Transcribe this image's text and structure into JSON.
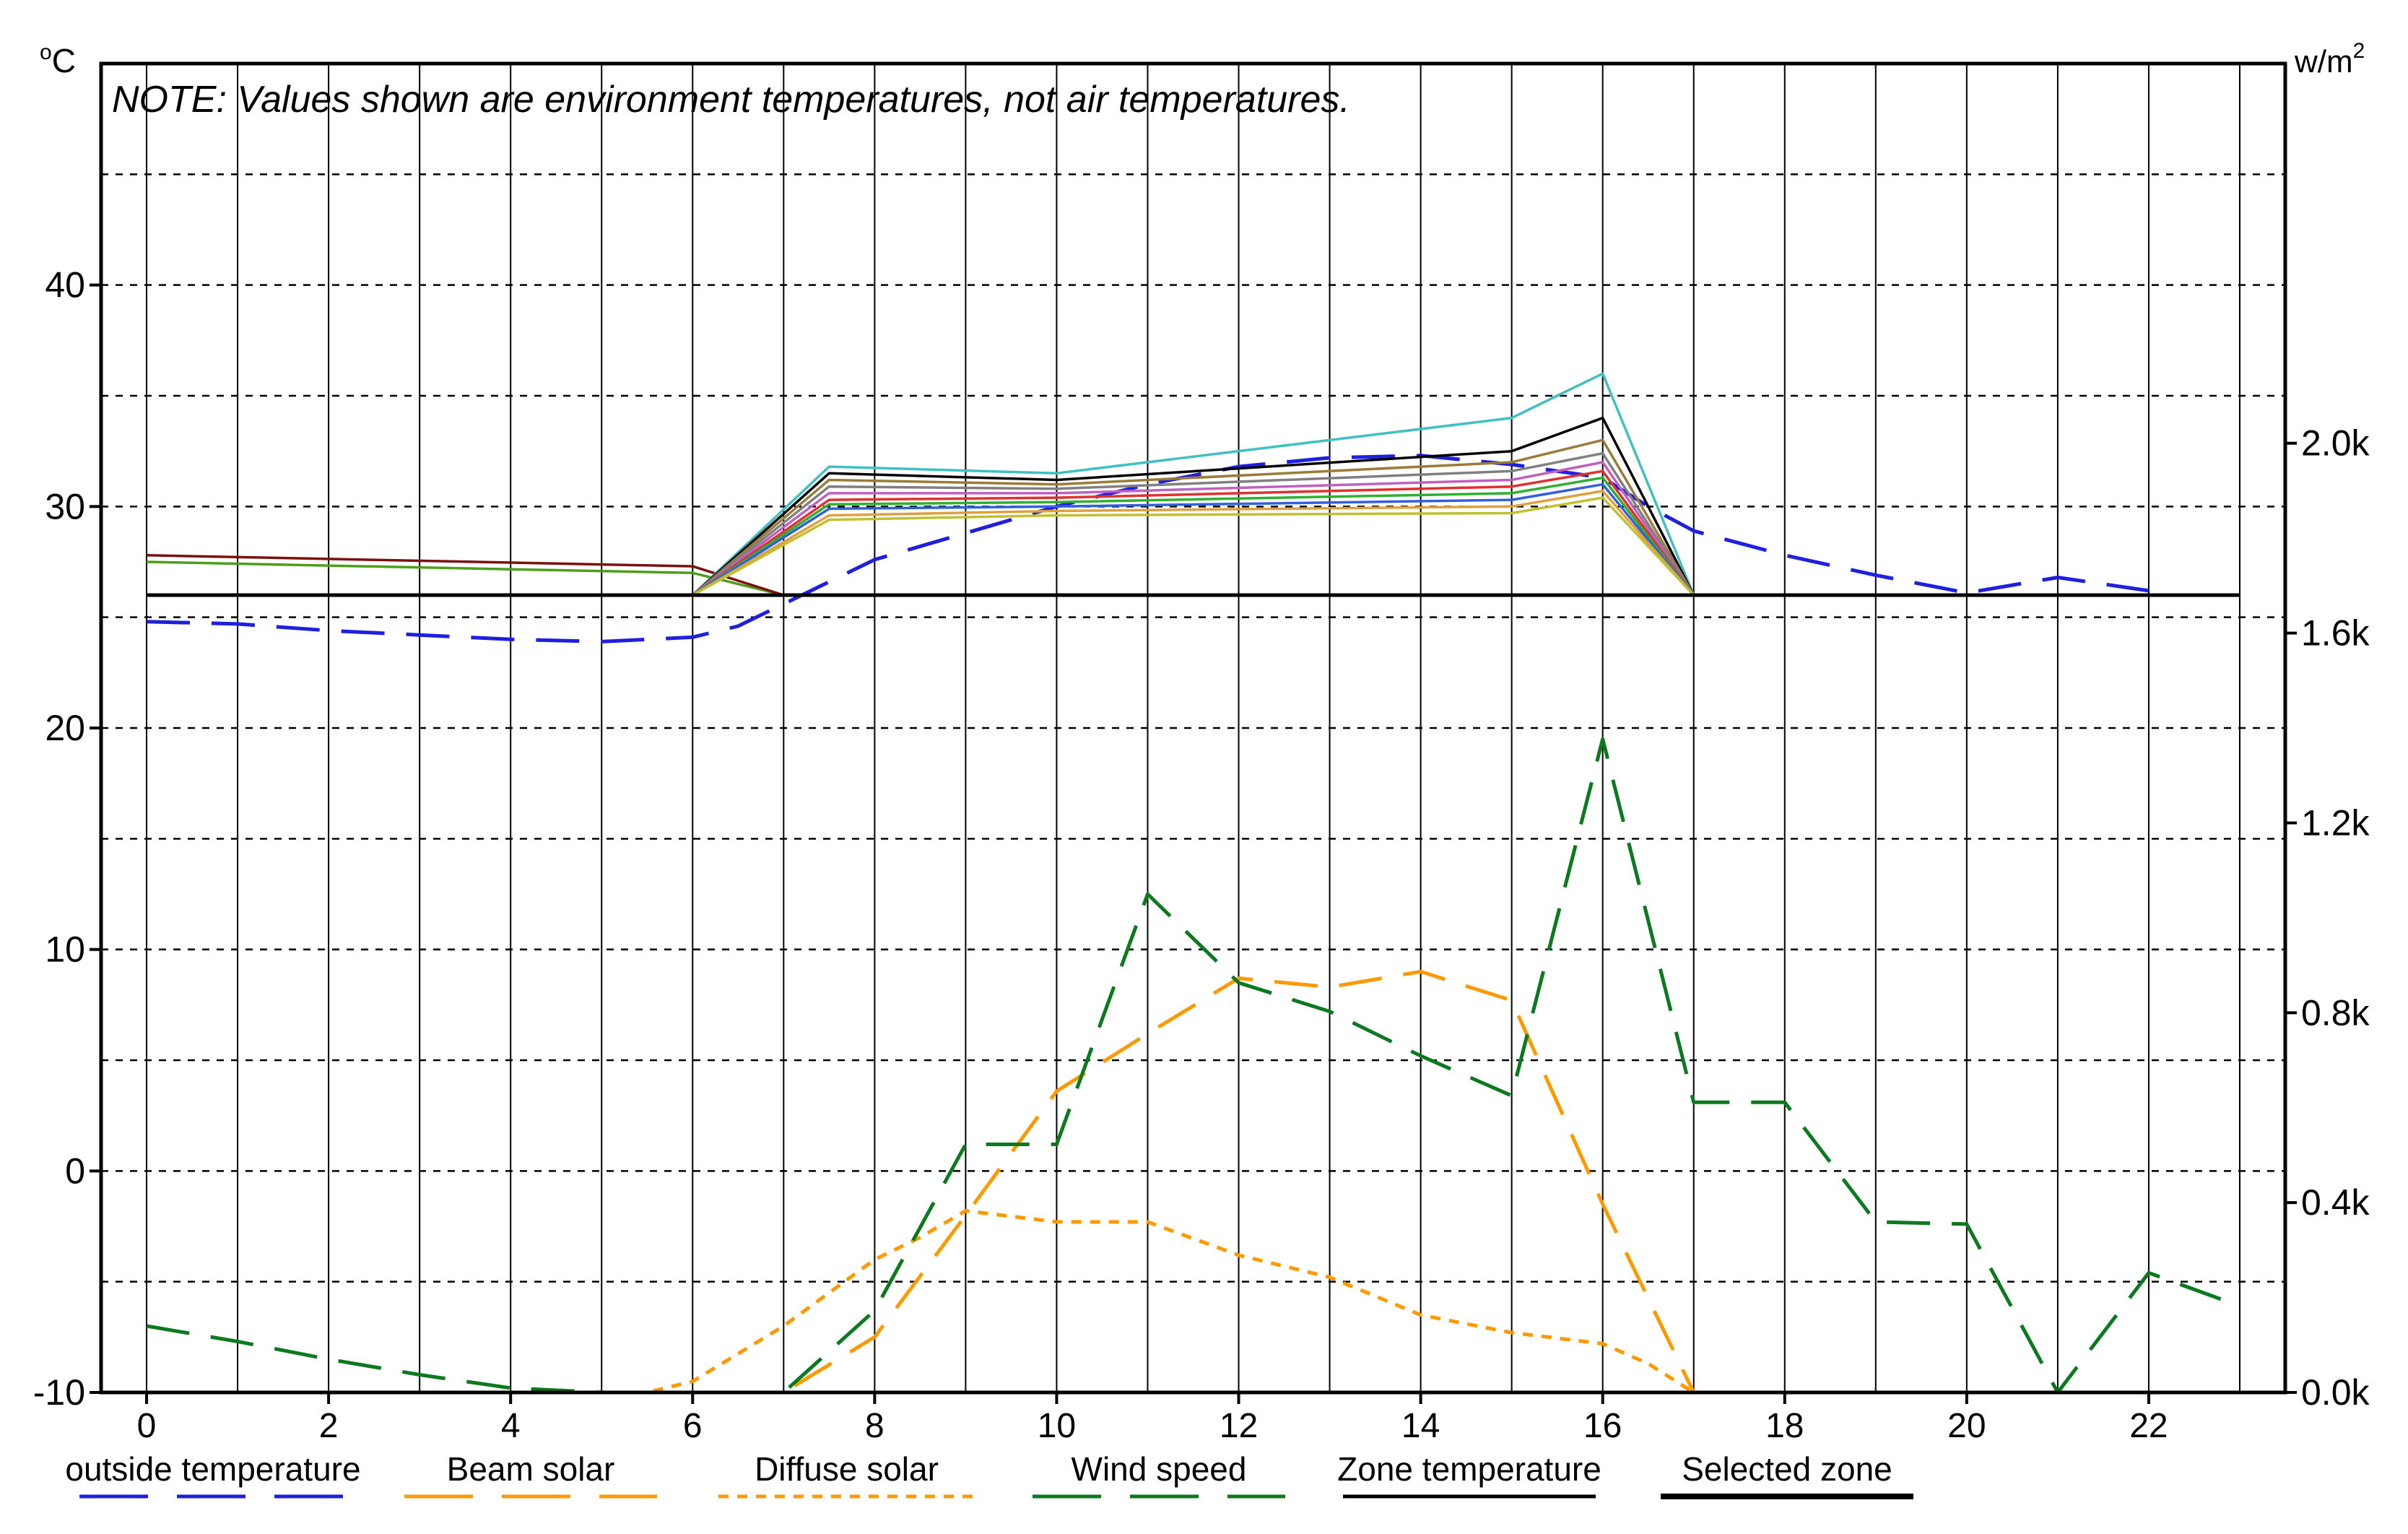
{
  "note": "NOTE: Values shown are environment temperatures, not air temperatures.",
  "left_unit_base": "o",
  "left_unit_tail": "C",
  "right_unit_base": "w/m",
  "right_unit_sup": "2",
  "chart_data": {
    "type": "line",
    "x_range": [
      -0.5,
      23.5
    ],
    "x_ticks": [
      0,
      2,
      4,
      6,
      8,
      10,
      12,
      14,
      16,
      18,
      20,
      22
    ],
    "y_left": {
      "range": [
        -10,
        50
      ],
      "ticks": [
        -10,
        0,
        10,
        20,
        30,
        40
      ]
    },
    "y_right": {
      "range": [
        0,
        2.8
      ],
      "ticks": [
        0.0,
        0.4,
        0.8,
        1.2,
        1.6,
        2.0
      ],
      "tick_labels": [
        "0.0k",
        "0.4k",
        "0.8k",
        "1.2k",
        "1.6k",
        "2.0k"
      ]
    },
    "grid": true,
    "legend_position": "bottom",
    "legend": [
      {
        "label": "outside temperature",
        "color": "#1f1fe0",
        "style": "dashed"
      },
      {
        "label": "Beam solar",
        "color": "#ff9900",
        "style": "dashed"
      },
      {
        "label": "Diffuse solar",
        "color": "#ff9900",
        "style": "dotted"
      },
      {
        "label": "Wind speed",
        "color": "#0b7a1f",
        "style": "dashed"
      },
      {
        "label": "Zone temperature",
        "color": "#000000",
        "style": "solid"
      },
      {
        "label": "Selected zone",
        "color": "#000000",
        "style": "solid-thick"
      }
    ],
    "series": [
      {
        "axis": "left",
        "color": "#1f1fe0",
        "style": "dashed",
        "x": [
          0,
          1,
          2,
          3,
          4,
          5,
          6,
          6.5,
          7,
          7.5,
          8,
          9,
          10,
          11,
          12,
          13,
          14,
          15,
          16,
          16.5,
          17,
          18,
          19,
          20,
          21,
          22
        ],
        "y": [
          24.8,
          24.7,
          24.4,
          24.2,
          24.0,
          23.9,
          24.1,
          24.6,
          25.6,
          26.6,
          27.6,
          28.8,
          30.0,
          31.0,
          31.8,
          32.2,
          32.3,
          31.9,
          31.3,
          30.0,
          28.9,
          27.8,
          26.9,
          26.1,
          26.8,
          26.2
        ]
      },
      {
        "axis": "left",
        "color": "#ff9900",
        "style": "dashed",
        "x": [
          0,
          1,
          2,
          3,
          4,
          5,
          6,
          7,
          8,
          9,
          10,
          11,
          12,
          13,
          14,
          15,
          16,
          17,
          18,
          19,
          20,
          21,
          22,
          23
        ],
        "y": [
          -10,
          -10,
          -10,
          -10,
          -10,
          -10,
          -10,
          -10,
          -7.5,
          -2,
          3.6,
          6.2,
          8.7,
          8.3,
          9.0,
          7.7,
          -1.5,
          -10,
          -10,
          -10,
          -10,
          -10,
          -10,
          -10
        ]
      },
      {
        "axis": "left",
        "color": "#ff9900",
        "style": "dotted",
        "x": [
          0,
          1,
          2,
          3,
          4,
          5,
          5.5,
          6,
          7,
          8,
          8.5,
          9,
          10,
          11,
          12,
          13,
          14,
          15,
          16,
          16.5,
          17,
          18,
          19,
          20,
          21,
          22,
          23
        ],
        "y": [
          -10,
          -10,
          -10,
          -10,
          -10,
          -10,
          -10,
          -9.5,
          -7.0,
          -4.0,
          -3.0,
          -1.8,
          -2.3,
          -2.3,
          -3.8,
          -4.8,
          -6.5,
          -7.3,
          -7.8,
          -8.7,
          -10,
          -10,
          -10,
          -10,
          -10,
          -10,
          -10
        ]
      },
      {
        "axis": "left",
        "color": "#0b7a1f",
        "style": "dashed",
        "x": [
          0,
          1,
          2,
          3,
          4,
          5,
          6,
          7,
          8,
          9,
          10,
          11,
          12,
          13,
          14,
          15,
          16,
          17,
          18,
          19,
          20,
          21,
          22,
          22.8
        ],
        "y": [
          -7.0,
          -7.7,
          -8.5,
          -9.2,
          -9.8,
          -10,
          -10,
          -10,
          -6.3,
          1.2,
          1.2,
          12.5,
          8.5,
          7.2,
          5.2,
          3.4,
          19.5,
          3.1,
          3.1,
          -2.3,
          -2.4,
          -10,
          -4.6,
          -5.8
        ]
      },
      {
        "axis": "left",
        "color": "#4d9e1a",
        "style": "solid",
        "x": [
          0,
          6,
          7,
          17,
          23
        ],
        "y": [
          27.5,
          27.0,
          26.0,
          26.0,
          26.0
        ]
      },
      {
        "axis": "left",
        "color": "#7a1010",
        "style": "solid",
        "x": [
          0,
          6,
          7,
          17,
          23
        ],
        "y": [
          27.8,
          27.3,
          26.0,
          26.0,
          26.0
        ]
      },
      {
        "axis": "left",
        "color": "#40c0c0",
        "style": "solid",
        "x": [
          0,
          6,
          7.5,
          10,
          15,
          16,
          17,
          23
        ],
        "y": [
          26.0,
          26.0,
          31.8,
          31.5,
          34.0,
          36.0,
          26.0,
          26.0
        ]
      },
      {
        "axis": "left",
        "color": "#000000",
        "style": "solid",
        "x": [
          0,
          6,
          7.5,
          10,
          15,
          16,
          17,
          23
        ],
        "y": [
          26.0,
          26.0,
          31.5,
          31.2,
          32.5,
          34.0,
          26.0,
          26.0
        ]
      },
      {
        "axis": "left",
        "color": "#9a7b3a",
        "style": "solid",
        "x": [
          0,
          6,
          7.5,
          10,
          15,
          16,
          17,
          23
        ],
        "y": [
          26.0,
          26.0,
          31.2,
          31.0,
          32.0,
          33.0,
          26.0,
          26.0
        ]
      },
      {
        "axis": "left",
        "color": "#808080",
        "style": "solid",
        "x": [
          0,
          6,
          7.5,
          10,
          15,
          16,
          17,
          23
        ],
        "y": [
          26.0,
          26.0,
          30.9,
          30.8,
          31.6,
          32.4,
          26.0,
          26.0
        ]
      },
      {
        "axis": "left",
        "color": "#c060c0",
        "style": "solid",
        "x": [
          0,
          6,
          7.5,
          10,
          15,
          16,
          17,
          23
        ],
        "y": [
          26.0,
          26.0,
          30.6,
          30.6,
          31.2,
          32.0,
          26.0,
          26.0
        ]
      },
      {
        "axis": "left",
        "color": "#e03030",
        "style": "solid",
        "x": [
          0,
          6,
          7.5,
          10,
          15,
          16,
          17,
          23
        ],
        "y": [
          26.0,
          26.0,
          30.3,
          30.4,
          30.9,
          31.6,
          26.0,
          26.0
        ]
      },
      {
        "axis": "left",
        "color": "#30b030",
        "style": "solid",
        "x": [
          0,
          6,
          7.5,
          10,
          15,
          16,
          17,
          23
        ],
        "y": [
          26.0,
          26.0,
          30.1,
          30.2,
          30.6,
          31.3,
          26.0,
          26.0
        ]
      },
      {
        "axis": "left",
        "color": "#3060e0",
        "style": "solid",
        "x": [
          0,
          6,
          7.5,
          10,
          15,
          16,
          17,
          23
        ],
        "y": [
          26.0,
          26.0,
          29.9,
          30.0,
          30.3,
          31.0,
          26.0,
          26.0
        ]
      },
      {
        "axis": "left",
        "color": "#e0a040",
        "style": "solid",
        "x": [
          0,
          6,
          7.5,
          10,
          15,
          16,
          17,
          23
        ],
        "y": [
          26.0,
          26.0,
          29.6,
          29.8,
          30.0,
          30.7,
          26.0,
          26.0
        ]
      },
      {
        "axis": "left",
        "color": "#c0c030",
        "style": "solid",
        "x": [
          0,
          6,
          7.5,
          10,
          15,
          16,
          17,
          23
        ],
        "y": [
          26.0,
          26.0,
          29.4,
          29.6,
          29.7,
          30.4,
          26.0,
          26.0
        ]
      },
      {
        "axis": "left",
        "color": "#000000",
        "style": "solid-thick",
        "x": [
          0,
          6,
          7,
          17,
          23
        ],
        "y": [
          26.0,
          26.0,
          26.0,
          26.0,
          26.0
        ]
      }
    ]
  }
}
